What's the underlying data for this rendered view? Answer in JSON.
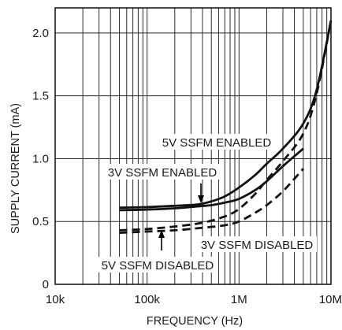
{
  "chart_data": {
    "type": "line",
    "xlabel": "FREQUENCY (Hz)",
    "ylabel": "SUPPLY CURRENT (mA)",
    "xscale": "log",
    "xlim": [
      10000,
      10000000
    ],
    "ylim": [
      0,
      2.2
    ],
    "grid": true,
    "x_tick_labels": [
      "10k",
      "100k",
      "1M",
      "10M"
    ],
    "y_tick_labels": [
      "0",
      "0.5",
      "1.0",
      "1.5",
      "2.0"
    ],
    "y_ticks": [
      0,
      0.5,
      1.0,
      1.5,
      2.0
    ],
    "series": [
      {
        "label": "5V SSFM ENABLED",
        "style": "solid",
        "x": [
          50000,
          100000,
          200000,
          350000,
          500000,
          700000,
          1000000,
          1500000,
          2000000,
          3000000,
          5000000,
          7000000,
          10000000
        ],
        "y": [
          0.61,
          0.615,
          0.625,
          0.635,
          0.66,
          0.7,
          0.77,
          0.87,
          0.96,
          1.08,
          1.28,
          1.55,
          2.1
        ]
      },
      {
        "label": "3V SSFM ENABLED",
        "style": "solid",
        "x": [
          50000,
          100000,
          200000,
          350000,
          500000,
          700000,
          1000000,
          1500000,
          2000000,
          3000000,
          5000000
        ],
        "y": [
          0.59,
          0.595,
          0.605,
          0.62,
          0.63,
          0.65,
          0.68,
          0.75,
          0.82,
          0.94,
          1.08
        ]
      },
      {
        "label": "5V SSFM DISABLED",
        "style": "dashed",
        "x": [
          50000,
          100000,
          200000,
          400000,
          700000,
          1000000,
          1500000,
          2000000,
          3000000,
          5000000,
          7000000,
          10000000
        ],
        "y": [
          0.43,
          0.44,
          0.46,
          0.49,
          0.54,
          0.6,
          0.72,
          0.83,
          0.98,
          1.2,
          1.52,
          2.1
        ]
      },
      {
        "label": "3V SSFM DISABLED",
        "style": "dashed",
        "x": [
          50000,
          100000,
          200000,
          400000,
          700000,
          1000000,
          1500000,
          2000000,
          3000000,
          5000000
        ],
        "y": [
          0.41,
          0.42,
          0.43,
          0.45,
          0.47,
          0.5,
          0.57,
          0.63,
          0.74,
          0.92
        ]
      }
    ],
    "annotations": [
      {
        "text": "5V SSFM ENABLED"
      },
      {
        "text": "3V SSFM ENABLED"
      },
      {
        "text": "3V SSFM DISABLED"
      },
      {
        "text": "5V SSFM DISABLED"
      }
    ]
  }
}
